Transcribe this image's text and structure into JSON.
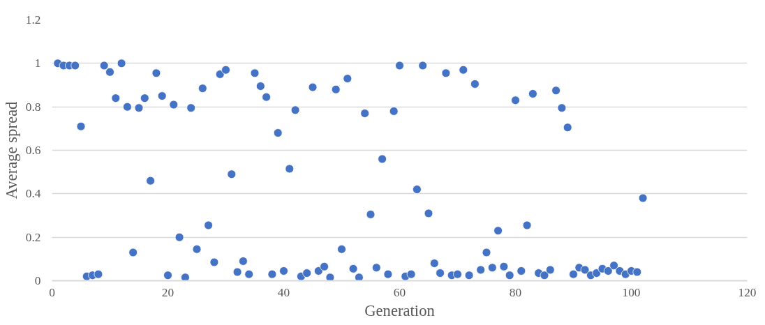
{
  "chart_data": {
    "type": "scatter",
    "xlabel": "Generation",
    "ylabel": "Average spread",
    "x": [
      1,
      2,
      3,
      4,
      5,
      6,
      7,
      8,
      9,
      10,
      11,
      12,
      13,
      14,
      15,
      16,
      17,
      18,
      19,
      20,
      21,
      22,
      23,
      24,
      25,
      26,
      27,
      28,
      29,
      30,
      31,
      32,
      33,
      34,
      35,
      36,
      37,
      38,
      39,
      40,
      41,
      42,
      43,
      44,
      45,
      46,
      47,
      48,
      49,
      50,
      51,
      52,
      53,
      54,
      55,
      56,
      57,
      58,
      59,
      60,
      61,
      62,
      63,
      64,
      65,
      66,
      67,
      68,
      69,
      70,
      71,
      72,
      73,
      74,
      75,
      76,
      77,
      78,
      79,
      80,
      81,
      82,
      83,
      84,
      85,
      86,
      87,
      88,
      89,
      90,
      91,
      92,
      93,
      94,
      95,
      96,
      97,
      98,
      99,
      100,
      101,
      102
    ],
    "series": [
      {
        "color": "#4472c4",
        "values": [
          1.0,
          0.99,
          0.99,
          0.99,
          0.71,
          0.02,
          0.025,
          0.03,
          0.99,
          0.96,
          0.84,
          1.0,
          0.8,
          0.13,
          0.795,
          0.84,
          0.46,
          0.955,
          0.85,
          0.025,
          0.81,
          0.2,
          0.015,
          0.795,
          0.145,
          0.885,
          0.255,
          0.085,
          0.95,
          0.97,
          0.49,
          0.04,
          0.09,
          0.03,
          0.955,
          0.895,
          0.845,
          0.03,
          0.68,
          0.045,
          0.515,
          0.785,
          0.02,
          0.035,
          0.89,
          0.045,
          0.065,
          0.015,
          0.88,
          0.145,
          0.93,
          0.055,
          0.015,
          0.77,
          0.305,
          0.06,
          0.56,
          0.03,
          0.78,
          0.99,
          0.02,
          0.03,
          0.42,
          0.99,
          0.31,
          0.08,
          0.035,
          0.955,
          0.025,
          0.03,
          0.97,
          0.025,
          0.905,
          0.05,
          0.13,
          0.06,
          0.23,
          0.065,
          0.025,
          0.83,
          0.045,
          0.255,
          0.86,
          0.035,
          0.025,
          0.05,
          0.875,
          0.795,
          0.705,
          0.03,
          0.06,
          0.05,
          0.025,
          0.035,
          0.055,
          0.045,
          0.07,
          0.045,
          0.03,
          0.045,
          0.04,
          0.38
        ]
      }
    ],
    "xlim": [
      0,
      120
    ],
    "xticks": [
      0,
      20,
      40,
      60,
      80,
      100,
      120
    ],
    "ylim": [
      0,
      1.2
    ],
    "yticks": [
      0,
      0.2,
      0.4,
      0.6,
      0.8,
      1,
      1.2
    ],
    "grid": "y",
    "marker": "circle"
  }
}
